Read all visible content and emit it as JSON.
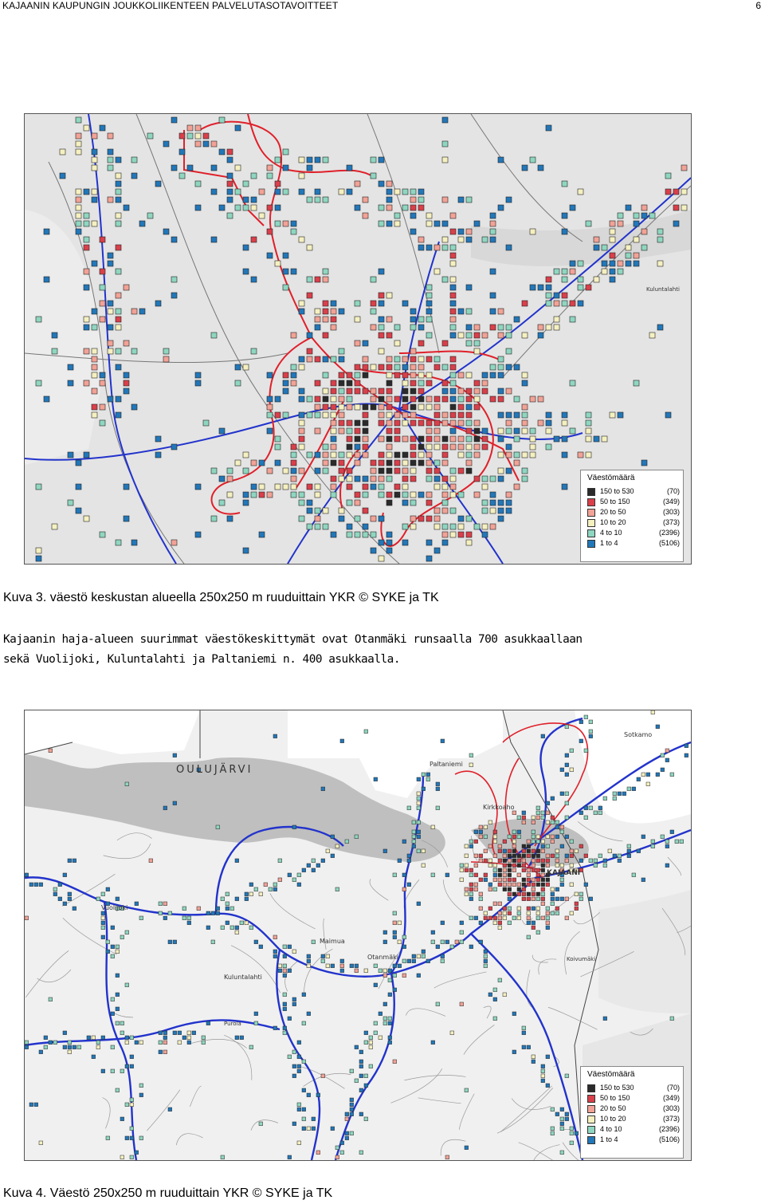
{
  "header": {
    "title": "KAJAANIN KAUPUNGIN JOUKKOLIIKENTEEN PALVELUTASOTAVOITTEET",
    "page_number": "6"
  },
  "figure1": {
    "caption": "Kuva 3. väestö keskustan alueella 250x250 m ruuduittain YKR © SYKE ja TK",
    "place_labels": [
      "Kuluntalahti"
    ]
  },
  "body": {
    "line1": "Kajaanin haja-alueen suurimmat väestökeskittymät ovat Otanmäki runsaalla 700 asukkaallaan",
    "line2": "sekä Vuolijoki, Kuluntalahti ja Paltaniemi n. 400 asukkaalla."
  },
  "figure2": {
    "caption": "Kuva 4. Väestö 250x250 m ruuduittain YKR © SYKE ja TK",
    "place_labels": [
      "OULUJÄRVI",
      "Vuolijoki",
      "Paltaniemi",
      "Kirkkoaho",
      "KAJAANI",
      "Otanmäki",
      "Maimua",
      "Kuluntalahti",
      "Sotkamo",
      "Koivumäki",
      "Purola"
    ]
  },
  "legend": {
    "title": "Väestömäärä",
    "items": [
      {
        "label": "150 to 530",
        "count": "(70)",
        "color": "#2b2b2b"
      },
      {
        "label": "50 to 150",
        "count": "(349)",
        "color": "#d9404a"
      },
      {
        "label": "20 to 50",
        "count": "(303)",
        "color": "#f2a296"
      },
      {
        "label": "10 to 20",
        "count": "(373)",
        "color": "#f5f0c0"
      },
      {
        "label": "4 to 10",
        "count": "(2396)",
        "color": "#8fd6c0"
      },
      {
        "label": "1 to 4",
        "count": "(5106)",
        "color": "#2277b8"
      }
    ]
  },
  "colors": {
    "route_red": "#e0202a",
    "road_blue": "#2233cc",
    "water": "#bfbfbf"
  }
}
